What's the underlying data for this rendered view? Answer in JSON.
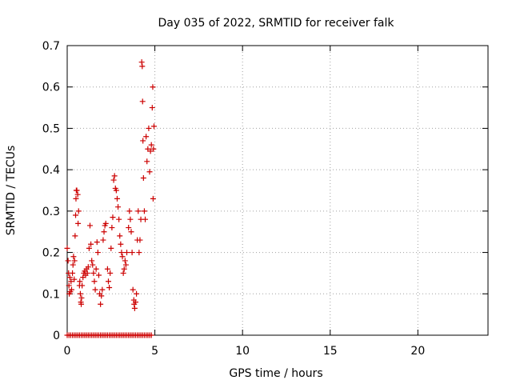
{
  "chart_data": {
    "type": "scatter",
    "title": "Day 035 of 2022, SRMTID for receiver falk",
    "xlabel": "GPS time / hours",
    "ylabel": "SRMTID / TECUs",
    "xlim": [
      0,
      24
    ],
    "ylim": [
      0,
      0.7
    ],
    "x_ticks": [
      0,
      5,
      10,
      15,
      20
    ],
    "x_tick_labels": [
      "0",
      "5",
      "10",
      "15",
      "20"
    ],
    "y_ticks": [
      0,
      0.1,
      0.2,
      0.3,
      0.4,
      0.5,
      0.6,
      0.7
    ],
    "y_tick_labels": [
      "0",
      "0.1",
      "0.2",
      "0.3",
      "0.4",
      "0.5",
      "0.6",
      "0.7"
    ],
    "grid": true,
    "marker": "+",
    "color": "#cc0000",
    "series": [
      {
        "name": "SRMTID",
        "points": [
          [
            0.0,
            0.21
          ],
          [
            0.05,
            0.18
          ],
          [
            0.08,
            0.15
          ],
          [
            0.1,
            0.12
          ],
          [
            0.12,
            0.1
          ],
          [
            0.15,
            0.14
          ],
          [
            0.18,
            0.105
          ],
          [
            0.22,
            0.13
          ],
          [
            0.25,
            0.11
          ],
          [
            0.3,
            0.15
          ],
          [
            0.33,
            0.17
          ],
          [
            0.36,
            0.19
          ],
          [
            0.4,
            0.135
          ],
          [
            0.42,
            0.18
          ],
          [
            0.45,
            0.24
          ],
          [
            0.48,
            0.29
          ],
          [
            0.5,
            0.33
          ],
          [
            0.52,
            0.35
          ],
          [
            0.55,
            0.35
          ],
          [
            0.6,
            0.34
          ],
          [
            0.62,
            0.27
          ],
          [
            0.65,
            0.3
          ],
          [
            0.7,
            0.12
          ],
          [
            0.72,
            0.13
          ],
          [
            0.75,
            0.1
          ],
          [
            0.78,
            0.08
          ],
          [
            0.8,
            0.075
          ],
          [
            0.82,
            0.09
          ],
          [
            0.85,
            0.12
          ],
          [
            0.9,
            0.14
          ],
          [
            0.95,
            0.15
          ],
          [
            1.0,
            0.155
          ],
          [
            1.05,
            0.145
          ],
          [
            1.1,
            0.16
          ],
          [
            1.15,
            0.15
          ],
          [
            1.2,
            0.165
          ],
          [
            1.25,
            0.21
          ],
          [
            1.3,
            0.265
          ],
          [
            1.35,
            0.22
          ],
          [
            1.4,
            0.18
          ],
          [
            1.45,
            0.17
          ],
          [
            1.5,
            0.15
          ],
          [
            1.55,
            0.13
          ],
          [
            1.6,
            0.11
          ],
          [
            1.65,
            0.16
          ],
          [
            1.7,
            0.225
          ],
          [
            1.75,
            0.2
          ],
          [
            1.8,
            0.145
          ],
          [
            1.85,
            0.1
          ],
          [
            1.9,
            0.075
          ],
          [
            1.95,
            0.095
          ],
          [
            2.0,
            0.11
          ],
          [
            2.05,
            0.23
          ],
          [
            2.1,
            0.25
          ],
          [
            2.15,
            0.265
          ],
          [
            2.2,
            0.27
          ],
          [
            2.3,
            0.16
          ],
          [
            2.35,
            0.13
          ],
          [
            2.4,
            0.115
          ],
          [
            2.45,
            0.15
          ],
          [
            2.5,
            0.21
          ],
          [
            2.55,
            0.26
          ],
          [
            2.6,
            0.285
          ],
          [
            2.65,
            0.375
          ],
          [
            2.7,
            0.385
          ],
          [
            2.75,
            0.355
          ],
          [
            2.8,
            0.35
          ],
          [
            2.85,
            0.33
          ],
          [
            2.9,
            0.31
          ],
          [
            2.95,
            0.28
          ],
          [
            3.0,
            0.24
          ],
          [
            3.05,
            0.22
          ],
          [
            3.1,
            0.2
          ],
          [
            3.15,
            0.19
          ],
          [
            3.2,
            0.15
          ],
          [
            3.25,
            0.16
          ],
          [
            3.3,
            0.18
          ],
          [
            3.35,
            0.17
          ],
          [
            3.4,
            0.2
          ],
          [
            3.5,
            0.26
          ],
          [
            3.55,
            0.3
          ],
          [
            3.6,
            0.28
          ],
          [
            3.65,
            0.25
          ],
          [
            3.7,
            0.2
          ],
          [
            3.75,
            0.11
          ],
          [
            3.8,
            0.085
          ],
          [
            3.82,
            0.075
          ],
          [
            3.85,
            0.065
          ],
          [
            3.9,
            0.08
          ],
          [
            3.95,
            0.1
          ],
          [
            4.0,
            0.23
          ],
          [
            4.05,
            0.3
          ],
          [
            4.1,
            0.2
          ],
          [
            4.15,
            0.23
          ],
          [
            4.2,
            0.28
          ],
          [
            4.25,
            0.66
          ],
          [
            4.28,
            0.65
          ],
          [
            4.3,
            0.565
          ],
          [
            4.32,
            0.47
          ],
          [
            4.35,
            0.38
          ],
          [
            4.4,
            0.3
          ],
          [
            4.45,
            0.28
          ],
          [
            4.5,
            0.48
          ],
          [
            4.55,
            0.42
          ],
          [
            4.6,
            0.45
          ],
          [
            4.65,
            0.5
          ],
          [
            4.7,
            0.395
          ],
          [
            4.75,
            0.445
          ],
          [
            4.8,
            0.46
          ],
          [
            4.85,
            0.55
          ],
          [
            4.88,
            0.6
          ],
          [
            4.9,
            0.33
          ],
          [
            4.92,
            0.45
          ],
          [
            4.95,
            0.505
          ],
          [
            0.0,
            0
          ],
          [
            0.1,
            0
          ],
          [
            0.2,
            0
          ],
          [
            0.3,
            0
          ],
          [
            0.4,
            0
          ],
          [
            0.5,
            0
          ],
          [
            0.6,
            0
          ],
          [
            0.7,
            0
          ],
          [
            0.8,
            0
          ],
          [
            0.9,
            0
          ],
          [
            1.0,
            0
          ],
          [
            1.1,
            0
          ],
          [
            1.2,
            0
          ],
          [
            1.3,
            0
          ],
          [
            1.4,
            0
          ],
          [
            1.5,
            0
          ],
          [
            1.6,
            0
          ],
          [
            1.7,
            0
          ],
          [
            1.8,
            0
          ],
          [
            1.9,
            0
          ],
          [
            2.0,
            0
          ],
          [
            2.1,
            0
          ],
          [
            2.2,
            0
          ],
          [
            2.3,
            0
          ],
          [
            2.4,
            0
          ],
          [
            2.5,
            0
          ],
          [
            2.6,
            0
          ],
          [
            2.7,
            0
          ],
          [
            2.8,
            0
          ],
          [
            2.9,
            0
          ],
          [
            3.0,
            0
          ],
          [
            3.1,
            0
          ],
          [
            3.2,
            0
          ],
          [
            3.3,
            0
          ],
          [
            3.4,
            0
          ],
          [
            3.5,
            0
          ],
          [
            3.6,
            0
          ],
          [
            3.7,
            0
          ],
          [
            3.8,
            0
          ],
          [
            3.9,
            0
          ],
          [
            4.0,
            0
          ],
          [
            4.1,
            0
          ],
          [
            4.2,
            0
          ],
          [
            4.3,
            0
          ],
          [
            4.4,
            0
          ],
          [
            4.5,
            0
          ],
          [
            4.6,
            0
          ],
          [
            4.7,
            0
          ],
          [
            4.8,
            0
          ]
        ]
      }
    ]
  }
}
